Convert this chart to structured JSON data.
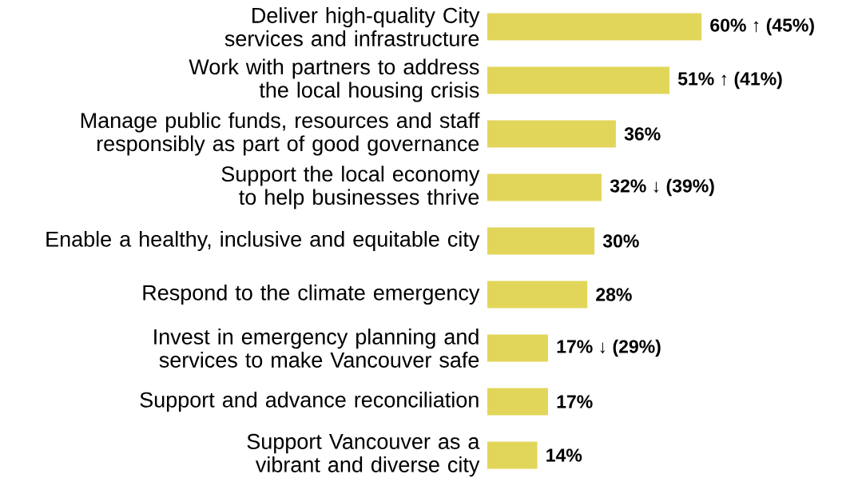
{
  "chart_data": {
    "type": "bar",
    "orientation": "horizontal",
    "categories": [
      "Deliver high-quality City services and infrastructure",
      "Work with partners to address the local housing crisis",
      "Manage public funds, resources and staff responsibly as part of good governance",
      "Support the local economy to help businesses thrive",
      "Enable a healthy, inclusive and equitable city",
      "Respond to the climate emergency",
      "Invest in emergency planning and services to make Vancouver safe",
      "Support and advance reconciliation",
      "Support Vancouver as a vibrant and diverse city"
    ],
    "values": [
      60,
      51,
      36,
      32,
      30,
      28,
      17,
      17,
      14
    ],
    "value_labels": [
      "60% ↑ (45%)",
      "51% ↑ (41%)",
      "36%",
      "32% ↓ (39%)",
      "30%",
      "28%",
      "17% ↓ (29%)",
      "17%",
      "14%"
    ],
    "color": "#e2d65a"
  }
}
